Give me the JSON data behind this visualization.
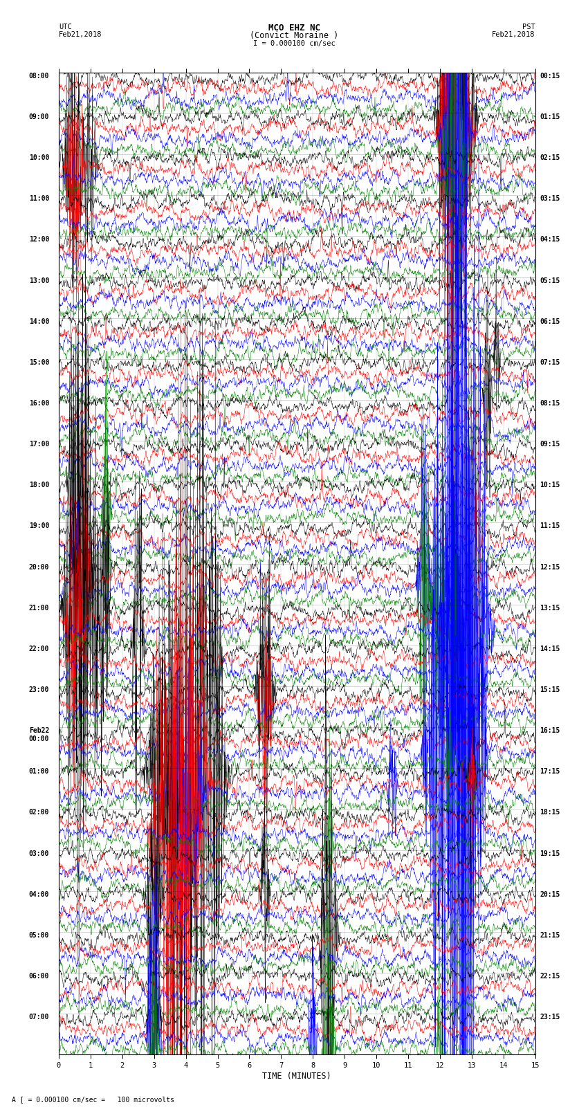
{
  "title_line1": "MCO EHZ NC",
  "title_line2": "(Convict Moraine )",
  "scale_label": "I = 0.000100 cm/sec",
  "utc_label": "UTC",
  "utc_date": "Feb21,2018",
  "pst_label": "PST",
  "pst_date": "Feb21,2018",
  "bottom_label": "A [ = 0.000100 cm/sec =   100 microvolts",
  "xlabel": "TIME (MINUTES)",
  "bg_color": "#ffffff",
  "trace_colors": [
    "black",
    "red",
    "blue",
    "green"
  ],
  "n_hour_rows": 24,
  "traces_per_hour": 4,
  "fig_width": 8.5,
  "fig_height": 16.13,
  "dpi": 100,
  "left_labels": [
    "08:00",
    "09:00",
    "10:00",
    "11:00",
    "12:00",
    "13:00",
    "14:00",
    "15:00",
    "16:00",
    "17:00",
    "18:00",
    "19:00",
    "20:00",
    "21:00",
    "22:00",
    "23:00",
    "Feb22\n00:00",
    "01:00",
    "02:00",
    "03:00",
    "04:00",
    "05:00",
    "06:00",
    "07:00"
  ],
  "right_labels": [
    "00:15",
    "01:15",
    "02:15",
    "03:15",
    "04:15",
    "05:15",
    "06:15",
    "07:15",
    "08:15",
    "09:15",
    "10:15",
    "11:15",
    "12:15",
    "13:15",
    "14:15",
    "15:15",
    "16:15",
    "17:15",
    "18:15",
    "19:15",
    "20:15",
    "21:15",
    "22:15",
    "23:15"
  ]
}
